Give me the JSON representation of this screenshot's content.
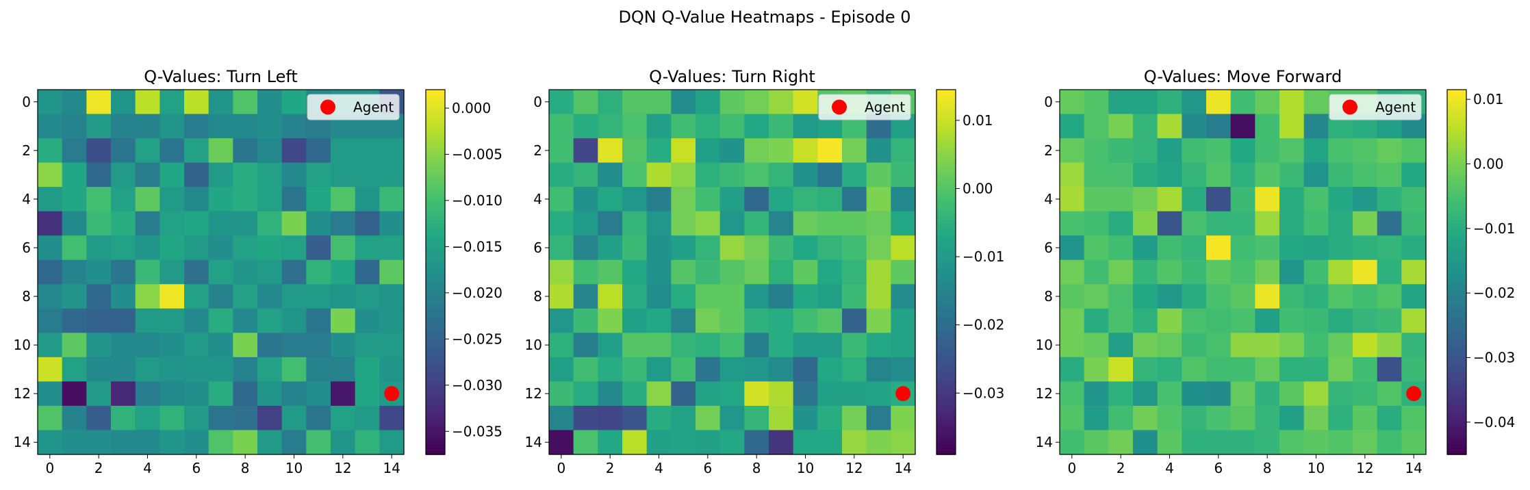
{
  "figure_title": "DQN Q-Value Heatmaps - Episode 0",
  "legend_label": "Agent",
  "chart_data": [
    {
      "type": "heatmap",
      "title": "Q-Values: Turn Left",
      "xlabel": "",
      "ylabel": "",
      "grid": false,
      "colormap": "viridis",
      "x_ticks": [
        0,
        2,
        4,
        6,
        8,
        10,
        12,
        14
      ],
      "y_ticks": [
        0,
        2,
        4,
        6,
        8,
        10,
        12,
        14
      ],
      "vmin": -0.0375,
      "vmax": 0.002,
      "colorbar_ticks": [
        0.0,
        -0.005,
        -0.01,
        -0.015,
        -0.02,
        -0.025,
        -0.03,
        -0.035
      ],
      "colorbar_tick_labels": [
        "0.000",
        "−0.005",
        "−0.010",
        "−0.015",
        "−0.020",
        "−0.025",
        "−0.030",
        "−0.035"
      ],
      "agent": {
        "x": 14,
        "y": 12
      },
      "legend_position": "upper right",
      "values": [
        [
          -0.017,
          -0.019,
          0.001,
          -0.017,
          -0.002,
          -0.015,
          -0.002,
          -0.017,
          -0.009,
          -0.018,
          -0.014,
          -0.019,
          -0.017,
          -0.017,
          -0.027
        ],
        [
          -0.019,
          -0.02,
          -0.016,
          -0.02,
          -0.02,
          -0.017,
          -0.021,
          -0.019,
          -0.019,
          -0.018,
          -0.02,
          -0.021,
          -0.019,
          -0.019,
          -0.019
        ],
        [
          -0.013,
          -0.021,
          -0.028,
          -0.022,
          -0.015,
          -0.022,
          -0.015,
          -0.007,
          -0.022,
          -0.019,
          -0.029,
          -0.024,
          -0.016,
          -0.016,
          -0.016
        ],
        [
          -0.005,
          -0.014,
          -0.024,
          -0.016,
          -0.021,
          -0.014,
          -0.025,
          -0.016,
          -0.013,
          -0.015,
          -0.019,
          -0.015,
          -0.016,
          -0.016,
          -0.016
        ],
        [
          -0.016,
          -0.014,
          -0.01,
          -0.015,
          -0.008,
          -0.016,
          -0.019,
          -0.014,
          -0.013,
          -0.015,
          -0.022,
          -0.014,
          -0.009,
          -0.017,
          -0.011
        ],
        [
          -0.032,
          -0.019,
          -0.011,
          -0.013,
          -0.021,
          -0.015,
          -0.014,
          -0.017,
          -0.017,
          -0.012,
          -0.006,
          -0.018,
          -0.021,
          -0.025,
          -0.018
        ],
        [
          -0.018,
          -0.01,
          -0.016,
          -0.015,
          -0.017,
          -0.014,
          -0.016,
          -0.018,
          -0.015,
          -0.014,
          -0.015,
          -0.026,
          -0.01,
          -0.015,
          -0.015
        ],
        [
          -0.024,
          -0.02,
          -0.018,
          -0.022,
          -0.011,
          -0.016,
          -0.023,
          -0.015,
          -0.017,
          -0.016,
          -0.023,
          -0.012,
          -0.014,
          -0.024,
          -0.008
        ],
        [
          -0.019,
          -0.017,
          -0.024,
          -0.018,
          -0.005,
          0.001,
          -0.015,
          -0.02,
          -0.015,
          -0.019,
          -0.016,
          -0.016,
          -0.017,
          -0.016,
          -0.017
        ],
        [
          -0.021,
          -0.024,
          -0.025,
          -0.025,
          -0.016,
          -0.016,
          -0.019,
          -0.013,
          -0.019,
          -0.015,
          -0.017,
          -0.022,
          -0.006,
          -0.018,
          -0.017
        ],
        [
          -0.016,
          -0.008,
          -0.017,
          -0.019,
          -0.019,
          -0.018,
          -0.016,
          -0.018,
          -0.006,
          -0.022,
          -0.021,
          -0.021,
          -0.018,
          -0.016,
          -0.016
        ],
        [
          -0.001,
          -0.015,
          -0.019,
          -0.019,
          -0.016,
          -0.017,
          -0.017,
          -0.017,
          -0.02,
          -0.015,
          -0.01,
          -0.02,
          -0.02,
          -0.014,
          -0.017
        ],
        [
          -0.018,
          -0.036,
          -0.016,
          -0.033,
          -0.021,
          -0.019,
          -0.018,
          -0.013,
          -0.024,
          -0.017,
          -0.02,
          -0.018,
          -0.035,
          -0.014,
          -0.016
        ],
        [
          -0.009,
          -0.02,
          -0.026,
          -0.012,
          -0.015,
          -0.012,
          -0.016,
          -0.022,
          -0.023,
          -0.03,
          -0.016,
          -0.022,
          -0.015,
          -0.016,
          -0.029
        ],
        [
          -0.017,
          -0.018,
          -0.018,
          -0.019,
          -0.019,
          -0.017,
          -0.018,
          -0.009,
          -0.006,
          -0.016,
          -0.021,
          -0.01,
          -0.017,
          -0.012,
          -0.016
        ]
      ]
    },
    {
      "type": "heatmap",
      "title": "Q-Values: Turn Right",
      "xlabel": "",
      "ylabel": "",
      "grid": false,
      "colormap": "viridis",
      "x_ticks": [
        0,
        2,
        4,
        6,
        8,
        10,
        12,
        14
      ],
      "y_ticks": [
        0,
        2,
        4,
        6,
        8,
        10,
        12,
        14
      ],
      "vmin": -0.039,
      "vmax": 0.0145,
      "colorbar_ticks": [
        0.01,
        0.0,
        -0.01,
        -0.02,
        -0.03
      ],
      "colorbar_tick_labels": [
        "0.01",
        "0.00",
        "−0.01",
        "−0.02",
        "−0.03"
      ],
      "agent": {
        "x": 14,
        "y": 12
      },
      "legend_position": "upper right",
      "values": [
        [
          -0.006,
          0.0,
          -0.005,
          0.0,
          0.0,
          -0.013,
          -0.008,
          0.001,
          0.003,
          0.006,
          0.011,
          0.0,
          0.001,
          -0.004,
          0.0
        ],
        [
          -0.002,
          -0.006,
          -0.004,
          -0.001,
          -0.009,
          -0.002,
          -0.005,
          -0.002,
          -0.007,
          -0.003,
          -0.01,
          -0.008,
          -0.002,
          -0.02,
          -0.009
        ],
        [
          -0.002,
          -0.028,
          0.012,
          0.0,
          -0.006,
          0.01,
          -0.009,
          -0.012,
          0.003,
          0.004,
          0.01,
          0.014,
          0.003,
          -0.012,
          -0.004
        ],
        [
          -0.006,
          -0.004,
          -0.013,
          -0.001,
          0.008,
          0.005,
          -0.005,
          -0.003,
          -0.001,
          -0.004,
          -0.012,
          -0.018,
          -0.006,
          0.001,
          -0.003
        ],
        [
          -0.002,
          -0.012,
          -0.007,
          -0.011,
          -0.016,
          0.003,
          -0.002,
          -0.009,
          -0.021,
          -0.007,
          -0.004,
          -0.005,
          -0.018,
          0.004,
          -0.014
        ],
        [
          -0.006,
          -0.01,
          -0.017,
          -0.004,
          -0.011,
          0.003,
          0.005,
          -0.011,
          -0.004,
          -0.015,
          0.002,
          0.001,
          0.001,
          0.002,
          -0.007
        ],
        [
          -0.004,
          -0.015,
          -0.009,
          -0.003,
          -0.012,
          -0.009,
          -0.004,
          0.006,
          0.003,
          -0.003,
          -0.007,
          -0.004,
          -0.002,
          0.003,
          0.009
        ],
        [
          0.006,
          -0.002,
          0.0,
          -0.007,
          -0.012,
          0.0,
          -0.003,
          0.0,
          0.002,
          -0.005,
          0.001,
          -0.007,
          -0.004,
          0.007,
          0.001
        ],
        [
          0.008,
          -0.015,
          0.009,
          -0.006,
          -0.013,
          -0.006,
          0.001,
          0.001,
          -0.011,
          -0.016,
          -0.007,
          -0.009,
          -0.003,
          0.007,
          -0.013
        ],
        [
          -0.011,
          -0.003,
          0.004,
          -0.009,
          -0.007,
          -0.015,
          0.003,
          0.001,
          -0.005,
          -0.006,
          -0.002,
          0.0,
          -0.022,
          0.004,
          -0.008
        ],
        [
          -0.005,
          -0.016,
          -0.009,
          0.0,
          0.0,
          -0.004,
          -0.005,
          -0.002,
          -0.016,
          -0.006,
          -0.01,
          -0.01,
          -0.003,
          -0.007,
          -0.008
        ],
        [
          -0.009,
          -0.002,
          -0.006,
          -0.003,
          -0.01,
          -0.002,
          -0.018,
          -0.01,
          -0.011,
          -0.013,
          -0.021,
          -0.007,
          -0.005,
          -0.015,
          -0.013
        ],
        [
          -0.003,
          -0.006,
          -0.014,
          -0.006,
          0.005,
          -0.022,
          -0.008,
          -0.007,
          0.011,
          0.008,
          -0.018,
          -0.009,
          -0.009,
          -0.008,
          -0.006
        ],
        [
          -0.015,
          -0.027,
          -0.028,
          -0.025,
          -0.006,
          -0.008,
          0.003,
          -0.011,
          -0.004,
          0.007,
          -0.012,
          -0.006,
          0.003,
          -0.017,
          0.004
        ],
        [
          -0.037,
          -0.001,
          -0.007,
          0.009,
          -0.009,
          -0.008,
          -0.009,
          -0.007,
          -0.021,
          -0.031,
          -0.007,
          -0.007,
          0.006,
          0.004,
          0.005
        ]
      ]
    },
    {
      "type": "heatmap",
      "title": "Q-Values: Move Forward",
      "xlabel": "",
      "ylabel": "",
      "grid": false,
      "colormap": "viridis",
      "x_ticks": [
        0,
        2,
        4,
        6,
        8,
        10,
        12,
        14
      ],
      "y_ticks": [
        0,
        2,
        4,
        6,
        8,
        10,
        12,
        14
      ],
      "vmin": -0.045,
      "vmax": 0.0115,
      "colorbar_ticks": [
        0.01,
        0.0,
        -0.01,
        -0.02,
        -0.03,
        -0.04
      ],
      "colorbar_tick_labels": [
        "0.01",
        "0.00",
        "−0.01",
        "−0.02",
        "−0.03",
        "−0.04"
      ],
      "agent": {
        "x": 14,
        "y": 12
      },
      "legend_position": "upper right",
      "values": [
        [
          -0.002,
          -0.004,
          -0.012,
          -0.012,
          -0.009,
          -0.015,
          0.01,
          -0.006,
          -0.002,
          0.005,
          -0.002,
          -0.004,
          -0.004,
          -0.01,
          -0.009
        ],
        [
          -0.011,
          -0.004,
          0.0,
          -0.008,
          0.004,
          -0.018,
          -0.021,
          -0.043,
          -0.006,
          0.005,
          -0.019,
          -0.009,
          -0.01,
          -0.013,
          -0.018
        ],
        [
          -0.002,
          -0.005,
          -0.007,
          -0.008,
          -0.013,
          -0.006,
          -0.005,
          -0.011,
          -0.006,
          -0.004,
          -0.012,
          -0.005,
          -0.004,
          -0.002,
          -0.004
        ],
        [
          0.003,
          -0.005,
          -0.005,
          -0.01,
          -0.012,
          -0.008,
          -0.004,
          -0.009,
          -0.004,
          -0.007,
          -0.016,
          -0.007,
          -0.005,
          -0.004,
          -0.011
        ],
        [
          0.004,
          -0.003,
          -0.003,
          -0.001,
          0.004,
          -0.01,
          -0.031,
          -0.007,
          0.01,
          -0.01,
          -0.005,
          -0.011,
          -0.015,
          -0.009,
          -0.006
        ],
        [
          -0.005,
          -0.006,
          -0.01,
          0.001,
          -0.03,
          -0.005,
          -0.008,
          -0.008,
          0.003,
          -0.01,
          -0.006,
          -0.01,
          0.0,
          -0.024,
          -0.007
        ],
        [
          -0.016,
          -0.004,
          -0.006,
          -0.014,
          -0.006,
          -0.008,
          0.011,
          -0.006,
          -0.005,
          -0.011,
          -0.012,
          -0.01,
          -0.009,
          -0.008,
          -0.01
        ],
        [
          -0.001,
          -0.006,
          -0.001,
          -0.008,
          -0.004,
          -0.007,
          -0.003,
          -0.005,
          -0.001,
          -0.016,
          -0.006,
          0.004,
          0.01,
          -0.009,
          0.004
        ],
        [
          -0.003,
          -0.002,
          -0.005,
          -0.011,
          -0.015,
          -0.01,
          -0.005,
          -0.003,
          0.01,
          -0.007,
          -0.009,
          -0.004,
          -0.006,
          -0.004,
          -0.012
        ],
        [
          -0.001,
          -0.01,
          -0.005,
          -0.009,
          0.001,
          -0.005,
          -0.006,
          -0.005,
          -0.013,
          -0.006,
          -0.007,
          -0.01,
          -0.008,
          -0.007,
          0.004
        ],
        [
          -0.001,
          -0.002,
          -0.013,
          -0.001,
          -0.002,
          -0.007,
          -0.005,
          0.002,
          0.002,
          0.0,
          -0.006,
          -0.002,
          0.006,
          0.002,
          -0.008
        ],
        [
          -0.01,
          0.0,
          0.007,
          -0.008,
          -0.009,
          -0.004,
          -0.006,
          -0.006,
          -0.002,
          -0.009,
          -0.009,
          -0.001,
          -0.006,
          -0.031,
          -0.007
        ],
        [
          -0.005,
          -0.016,
          -0.009,
          -0.015,
          -0.005,
          -0.017,
          -0.018,
          -0.002,
          -0.009,
          -0.003,
          0.003,
          -0.008,
          -0.007,
          -0.004,
          -0.009
        ],
        [
          -0.004,
          -0.014,
          -0.006,
          -0.001,
          -0.004,
          -0.008,
          -0.005,
          -0.003,
          -0.008,
          -0.013,
          -0.001,
          -0.009,
          -0.003,
          -0.01,
          -0.004
        ],
        [
          -0.006,
          -0.003,
          -0.001,
          -0.017,
          -0.003,
          -0.009,
          -0.009,
          -0.009,
          -0.008,
          -0.004,
          -0.003,
          -0.004,
          -0.002,
          -0.006,
          -0.003
        ]
      ]
    }
  ]
}
